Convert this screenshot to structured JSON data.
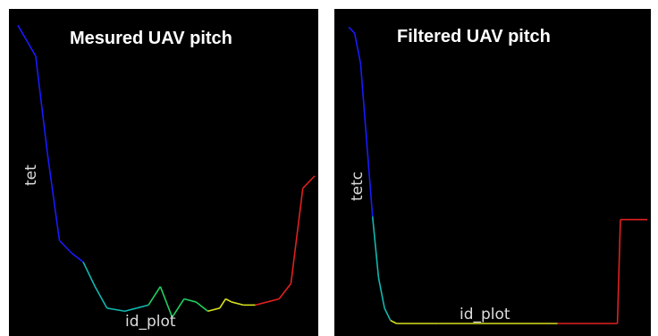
{
  "chart_data": [
    {
      "type": "line",
      "title": "Mesured UAV pitch",
      "xlabel": "id_plot",
      "ylabel": "tet",
      "grid": false,
      "colors": [
        "#1a1aff",
        "#10b8b0",
        "#20d060",
        "#d8e020",
        "#e02020"
      ],
      "x": [
        0,
        6,
        10,
        14,
        18,
        22,
        26,
        30,
        36,
        40,
        44,
        48,
        52,
        56,
        60,
        64,
        68,
        70,
        72,
        76,
        80,
        84,
        88,
        92,
        96,
        100
      ],
      "y": [
        0.97,
        0.87,
        0.55,
        0.27,
        0.23,
        0.2,
        0.12,
        0.05,
        0.04,
        0.05,
        0.06,
        0.12,
        0.02,
        0.08,
        0.07,
        0.04,
        0.05,
        0.08,
        0.07,
        0.06,
        0.06,
        0.07,
        0.08,
        0.13,
        0.44,
        0.48
      ]
    },
    {
      "type": "line",
      "title": "Filtered  UAV pitch",
      "xlabel": "id_plot",
      "ylabel": "tetc",
      "grid": false,
      "colors": [
        "#1a1aff",
        "#10b8b0",
        "#d8e020",
        "#e02020"
      ],
      "x": [
        0,
        2,
        4,
        6,
        8,
        10,
        12,
        14,
        16,
        30,
        50,
        70,
        90,
        91,
        100
      ],
      "y": [
        0.97,
        0.95,
        0.85,
        0.6,
        0.35,
        0.15,
        0.05,
        0.01,
        0.0,
        0.0,
        0.0,
        0.0,
        0.0,
        0.34,
        0.34
      ]
    }
  ]
}
